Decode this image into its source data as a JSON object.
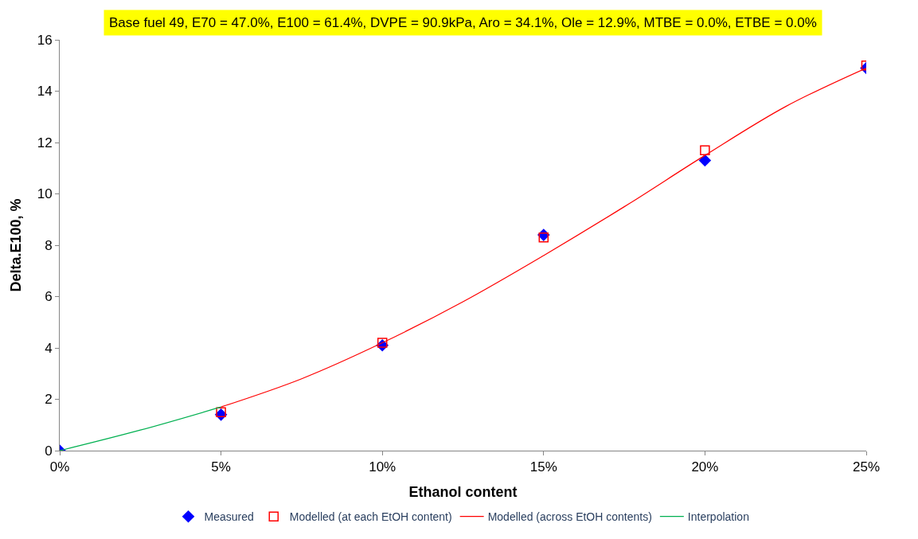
{
  "chart_data": {
    "type": "scatter",
    "title": "Base fuel 49, E70 = 47.0%, E100 = 61.4%, DVPE = 90.9kPa, Aro = 34.1%, Ole = 12.9%, MTBE = 0.0%, ETBE = 0.0%",
    "xlabel": "Ethanol content",
    "ylabel": "Delta.E100, %",
    "series": [
      {
        "name": "Measured",
        "marker": "diamond",
        "color": "#0000ff",
        "x": [
          0,
          5,
          10,
          15,
          20,
          25
        ],
        "values": [
          0,
          1.4,
          4.1,
          8.4,
          11.3,
          14.9
        ]
      },
      {
        "name": "Modelled (at each EtOH content)",
        "marker": "square",
        "color": "#ff0000",
        "x": [
          5,
          10,
          15,
          20,
          25
        ],
        "values": [
          1.5,
          4.2,
          8.3,
          11.7,
          15.0
        ]
      },
      {
        "name": "Modelled (across EtOH contents)",
        "type": "line",
        "marker": "none",
        "color": "#ff0000",
        "x": [
          5,
          7.5,
          10,
          12.5,
          15,
          17.5,
          20,
          22.5,
          25
        ],
        "values": [
          1.7,
          2.8,
          4.2,
          5.8,
          7.6,
          9.5,
          11.5,
          13.4,
          14.9
        ]
      },
      {
        "name": "Interpolation",
        "type": "line",
        "marker": "none",
        "color": "#00b050",
        "x": [
          0,
          2.5,
          5
        ],
        "values": [
          0,
          0.8,
          1.7
        ]
      }
    ],
    "xlim": [
      0,
      25
    ],
    "xticks": [
      {
        "value": 0,
        "label": "0%"
      },
      {
        "value": 5,
        "label": "5%"
      },
      {
        "value": 10,
        "label": "10%"
      },
      {
        "value": 15,
        "label": "15%"
      },
      {
        "value": 20,
        "label": "20%"
      },
      {
        "value": 25,
        "label": "25%"
      }
    ],
    "ylim": [
      0,
      16
    ],
    "yticks": [
      0,
      2,
      4,
      6,
      8,
      10,
      12,
      14,
      16
    ],
    "legend": "bottom"
  }
}
